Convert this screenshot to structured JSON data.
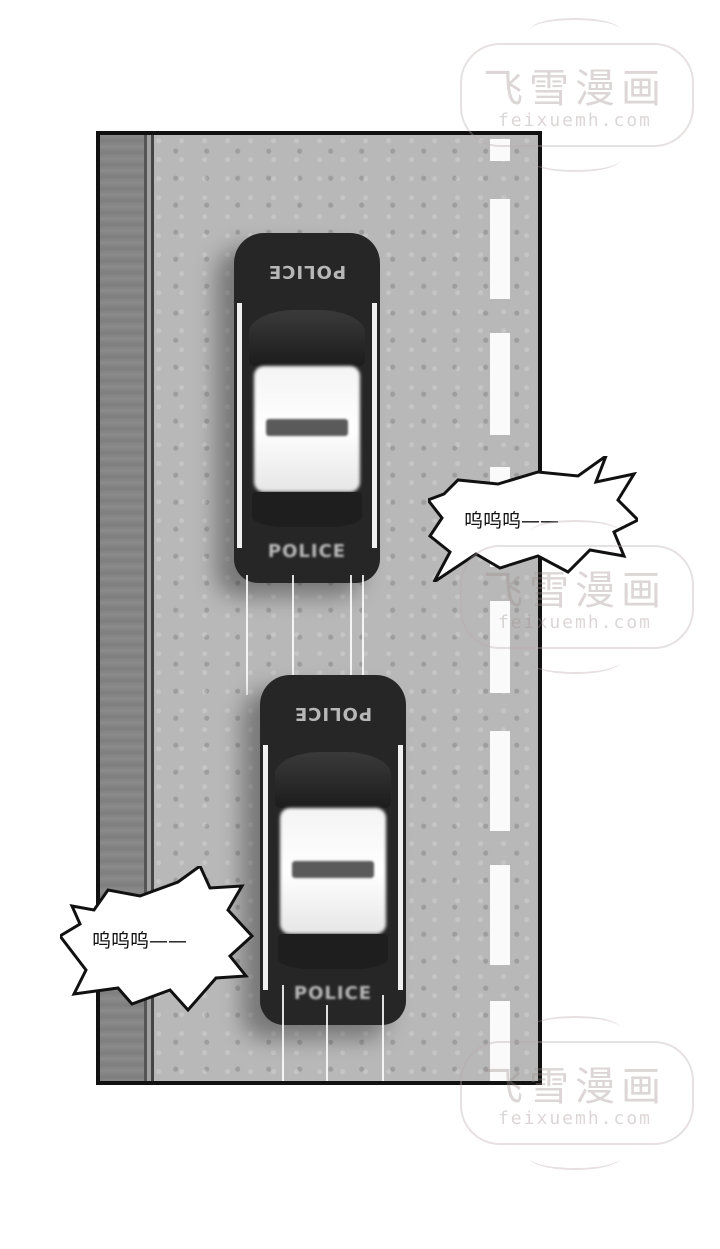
{
  "scene": {
    "top_car_roof_text": "POLICE",
    "top_car_trunk_text": "POLICE",
    "bottom_car_roof_text": "POLICE",
    "bottom_car_trunk_text": "POLICE"
  },
  "bubbles": [
    {
      "text": "呜呜呜——"
    },
    {
      "text": "呜呜呜——"
    }
  ],
  "watermark": {
    "title": "飞雪漫画",
    "site": "feixuemh.com"
  },
  "colors": {
    "panel_border": "#111111",
    "road": "#b8b8b8",
    "lane_marking": "#fafafa",
    "car_body": "#262626"
  }
}
